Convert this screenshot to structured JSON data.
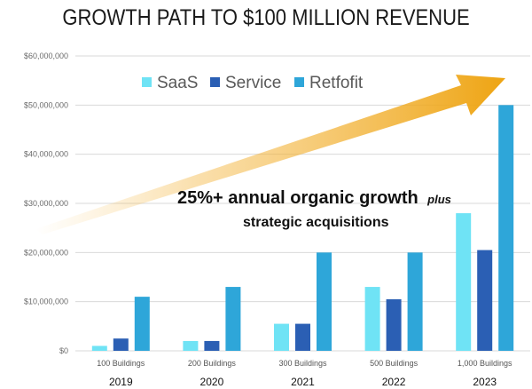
{
  "chart_data": {
    "type": "bar",
    "title": "GROWTH PATH TO $100 MILLION REVENUE",
    "categories": [
      "100 Buildings",
      "200 Buildings",
      "300 Buildings",
      "500 Buildings",
      "1,000 Buildings"
    ],
    "years": [
      "2019",
      "2020",
      "2021",
      "2022",
      "2023"
    ],
    "series": [
      {
        "name": "SaaS",
        "color": "#6fe3f5",
        "values": [
          1000000,
          2000000,
          5500000,
          13000000,
          28000000
        ]
      },
      {
        "name": "Service",
        "color": "#2b5fb4",
        "values": [
          2500000,
          2000000,
          5500000,
          10500000,
          20500000
        ]
      },
      {
        "name": "Retfofit",
        "color": "#2ea6d9",
        "values": [
          11000000,
          13000000,
          20000000,
          20000000,
          50000000
        ]
      }
    ],
    "ylim": [
      0,
      60000000
    ],
    "yticks": [
      "$0",
      "$10,000,000",
      "$20,000,000",
      "$30,000,000",
      "$40,000,000",
      "$50,000,000",
      "$60,000,000"
    ],
    "legend_position": "top",
    "annotation": {
      "line1": "25%+ annual organic growth",
      "line1_suffix": "plus",
      "line2": "strategic acquisitions",
      "arrow_color": "#f0a914"
    },
    "xlabel": "",
    "ylabel": ""
  }
}
